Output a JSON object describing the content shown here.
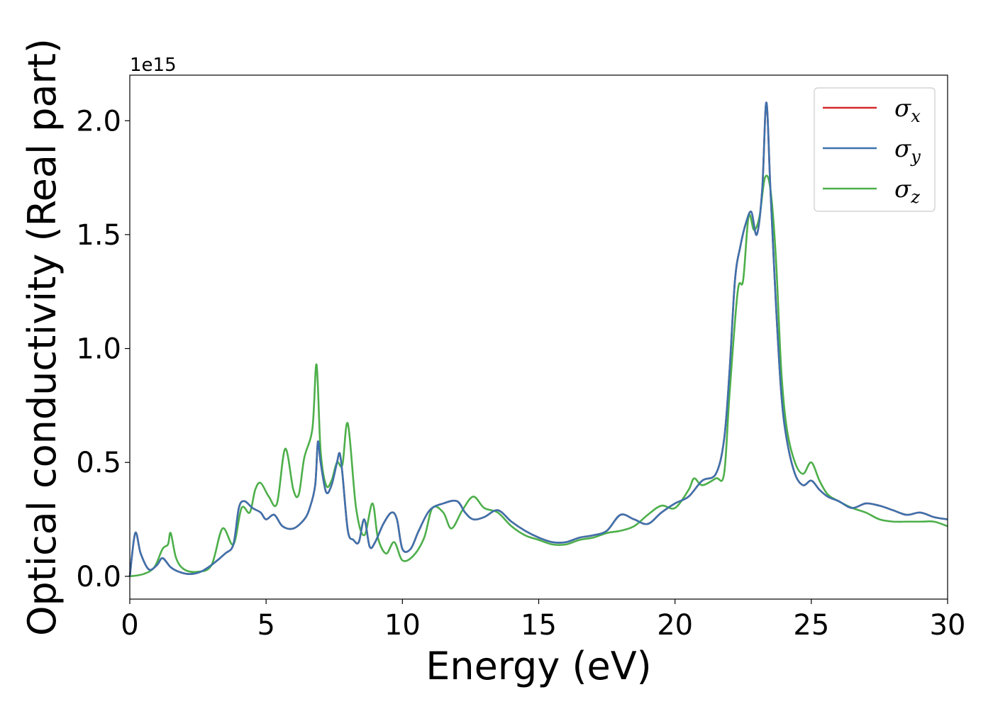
{
  "chart_data": {
    "type": "line",
    "xlabel": "Energy (eV)",
    "ylabel": "Optical conductivity (Real part)",
    "y_offset_label": "1e15",
    "xlim": [
      0,
      30
    ],
    "ylim": [
      -0.1,
      2.2
    ],
    "xticks": [
      0,
      5,
      10,
      15,
      20,
      25,
      30
    ],
    "xtick_labels": [
      "0",
      "5",
      "10",
      "15",
      "20",
      "25",
      "30"
    ],
    "yticks": [
      0.0,
      0.5,
      1.0,
      1.5,
      2.0
    ],
    "ytick_labels": [
      "0.0",
      "0.5",
      "1.0",
      "1.5",
      "2.0"
    ],
    "grid": false,
    "legend_position": "top-right",
    "series": [
      {
        "name": "σx",
        "legend_symbol": "σ",
        "legend_sub": "x",
        "color": "#d62728",
        "x": [
          0.0,
          0.2,
          0.4,
          0.7,
          1.0,
          1.2,
          1.5,
          1.8,
          2.2,
          2.6,
          3.0,
          3.5,
          3.8,
          4.0,
          4.2,
          4.5,
          4.8,
          5.0,
          5.3,
          5.6,
          6.0,
          6.4,
          6.6,
          6.8,
          6.9,
          7.0,
          7.2,
          7.4,
          7.6,
          7.7,
          7.8,
          8.0,
          8.2,
          8.4,
          8.6,
          8.8,
          9.0,
          9.3,
          9.6,
          9.8,
          10.0,
          10.3,
          10.6,
          11.0,
          11.5,
          12.0,
          12.3,
          12.6,
          13.0,
          13.5,
          14.0,
          14.5,
          15.0,
          15.5,
          16.0,
          16.5,
          17.0,
          17.5,
          18.0,
          18.5,
          19.0,
          19.5,
          20.0,
          20.5,
          21.0,
          21.5,
          21.8,
          22.0,
          22.2,
          22.4,
          22.6,
          22.8,
          23.0,
          23.2,
          23.35,
          23.5,
          23.7,
          23.9,
          24.1,
          24.4,
          24.7,
          25.0,
          25.3,
          25.6,
          26.0,
          26.5,
          27.0,
          27.5,
          28.0,
          28.5,
          29.0,
          29.5,
          30.0
        ],
        "y": [
          0.0,
          0.19,
          0.1,
          0.03,
          0.05,
          0.08,
          0.04,
          0.02,
          0.01,
          0.02,
          0.05,
          0.1,
          0.14,
          0.3,
          0.33,
          0.3,
          0.28,
          0.25,
          0.27,
          0.22,
          0.21,
          0.25,
          0.3,
          0.4,
          0.59,
          0.5,
          0.37,
          0.4,
          0.5,
          0.54,
          0.45,
          0.2,
          0.16,
          0.15,
          0.25,
          0.13,
          0.15,
          0.23,
          0.28,
          0.25,
          0.12,
          0.12,
          0.2,
          0.29,
          0.32,
          0.33,
          0.28,
          0.25,
          0.26,
          0.29,
          0.24,
          0.2,
          0.17,
          0.15,
          0.15,
          0.17,
          0.18,
          0.2,
          0.27,
          0.25,
          0.23,
          0.28,
          0.32,
          0.35,
          0.42,
          0.45,
          0.6,
          0.9,
          1.3,
          1.45,
          1.55,
          1.6,
          1.5,
          1.7,
          2.08,
          1.7,
          1.2,
          0.8,
          0.6,
          0.45,
          0.4,
          0.42,
          0.38,
          0.35,
          0.33,
          0.3,
          0.32,
          0.31,
          0.29,
          0.27,
          0.28,
          0.26,
          0.25
        ]
      },
      {
        "name": "σy",
        "legend_symbol": "σ",
        "legend_sub": "y",
        "color": "#3d72ad",
        "x": [
          0.0,
          0.2,
          0.4,
          0.7,
          1.0,
          1.2,
          1.5,
          1.8,
          2.2,
          2.6,
          3.0,
          3.5,
          3.8,
          4.0,
          4.2,
          4.5,
          4.8,
          5.0,
          5.3,
          5.6,
          6.0,
          6.4,
          6.6,
          6.8,
          6.9,
          7.0,
          7.2,
          7.4,
          7.6,
          7.7,
          7.8,
          8.0,
          8.2,
          8.4,
          8.6,
          8.8,
          9.0,
          9.3,
          9.6,
          9.8,
          10.0,
          10.3,
          10.6,
          11.0,
          11.5,
          12.0,
          12.3,
          12.6,
          13.0,
          13.5,
          14.0,
          14.5,
          15.0,
          15.5,
          16.0,
          16.5,
          17.0,
          17.5,
          18.0,
          18.5,
          19.0,
          19.5,
          20.0,
          20.5,
          21.0,
          21.5,
          21.8,
          22.0,
          22.2,
          22.4,
          22.6,
          22.8,
          23.0,
          23.2,
          23.35,
          23.5,
          23.7,
          23.9,
          24.1,
          24.4,
          24.7,
          25.0,
          25.3,
          25.6,
          26.0,
          26.5,
          27.0,
          27.5,
          28.0,
          28.5,
          29.0,
          29.5,
          30.0
        ],
        "y": [
          0.0,
          0.19,
          0.1,
          0.03,
          0.05,
          0.08,
          0.04,
          0.02,
          0.01,
          0.02,
          0.05,
          0.1,
          0.14,
          0.3,
          0.33,
          0.3,
          0.28,
          0.25,
          0.27,
          0.22,
          0.21,
          0.25,
          0.3,
          0.4,
          0.59,
          0.5,
          0.37,
          0.4,
          0.5,
          0.54,
          0.45,
          0.2,
          0.16,
          0.15,
          0.25,
          0.13,
          0.15,
          0.23,
          0.28,
          0.25,
          0.12,
          0.12,
          0.2,
          0.29,
          0.32,
          0.33,
          0.28,
          0.25,
          0.26,
          0.29,
          0.24,
          0.2,
          0.17,
          0.15,
          0.15,
          0.17,
          0.18,
          0.2,
          0.27,
          0.25,
          0.23,
          0.28,
          0.32,
          0.35,
          0.42,
          0.45,
          0.6,
          0.9,
          1.3,
          1.45,
          1.55,
          1.6,
          1.5,
          1.7,
          2.08,
          1.7,
          1.2,
          0.8,
          0.6,
          0.45,
          0.4,
          0.42,
          0.38,
          0.35,
          0.33,
          0.3,
          0.32,
          0.31,
          0.29,
          0.27,
          0.28,
          0.26,
          0.25
        ]
      },
      {
        "name": "σz",
        "legend_symbol": "σ",
        "legend_sub": "z",
        "color": "#4daf4a",
        "x": [
          0.0,
          0.5,
          0.9,
          1.2,
          1.4,
          1.5,
          1.7,
          2.0,
          2.5,
          3.0,
          3.4,
          3.8,
          4.1,
          4.4,
          4.6,
          4.8,
          5.1,
          5.4,
          5.7,
          6.0,
          6.2,
          6.4,
          6.7,
          6.85,
          7.0,
          7.2,
          7.4,
          7.6,
          7.8,
          8.0,
          8.3,
          8.6,
          8.9,
          9.1,
          9.4,
          9.7,
          10.0,
          10.4,
          10.8,
          11.1,
          11.5,
          11.8,
          12.2,
          12.6,
          13.0,
          13.5,
          14.0,
          14.5,
          15.0,
          15.5,
          16.0,
          16.5,
          17.0,
          17.5,
          18.0,
          18.5,
          19.0,
          19.5,
          20.0,
          20.5,
          20.7,
          21.0,
          21.5,
          21.8,
          22.0,
          22.3,
          22.5,
          22.7,
          22.9,
          23.1,
          23.3,
          23.5,
          23.7,
          23.9,
          24.1,
          24.4,
          24.7,
          25.0,
          25.3,
          25.6,
          26.0,
          26.5,
          27.0,
          27.5,
          28.0,
          28.5,
          29.0,
          29.5,
          30.0
        ],
        "y": [
          0.0,
          0.01,
          0.04,
          0.12,
          0.14,
          0.19,
          0.08,
          0.03,
          0.02,
          0.05,
          0.21,
          0.14,
          0.3,
          0.28,
          0.38,
          0.41,
          0.35,
          0.32,
          0.56,
          0.38,
          0.36,
          0.52,
          0.65,
          0.93,
          0.55,
          0.4,
          0.42,
          0.5,
          0.49,
          0.67,
          0.3,
          0.18,
          0.32,
          0.17,
          0.1,
          0.15,
          0.07,
          0.09,
          0.17,
          0.3,
          0.28,
          0.21,
          0.29,
          0.35,
          0.3,
          0.28,
          0.22,
          0.18,
          0.16,
          0.14,
          0.14,
          0.16,
          0.17,
          0.19,
          0.2,
          0.22,
          0.27,
          0.31,
          0.3,
          0.38,
          0.43,
          0.4,
          0.43,
          0.45,
          0.8,
          1.25,
          1.3,
          1.58,
          1.52,
          1.58,
          1.75,
          1.7,
          1.4,
          0.9,
          0.65,
          0.5,
          0.45,
          0.5,
          0.42,
          0.36,
          0.33,
          0.3,
          0.28,
          0.25,
          0.24,
          0.24,
          0.24,
          0.24,
          0.22
        ]
      }
    ]
  }
}
